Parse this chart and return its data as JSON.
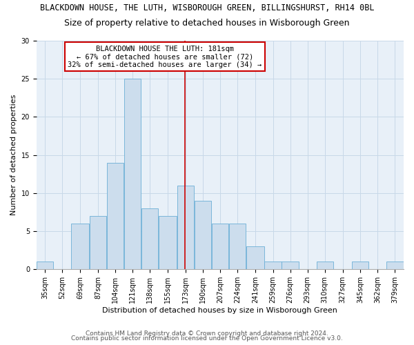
{
  "title": "BLACKDOWN HOUSE, THE LUTH, WISBOROUGH GREEN, BILLINGSHURST, RH14 0BL",
  "subtitle": "Size of property relative to detached houses in Wisborough Green",
  "xlabel": "Distribution of detached houses by size in Wisborough Green",
  "ylabel": "Number of detached properties",
  "footer1": "Contains HM Land Registry data © Crown copyright and database right 2024.",
  "footer2": "Contains public sector information licensed under the Open Government Licence v3.0.",
  "bar_labels": [
    "35sqm",
    "52sqm",
    "69sqm",
    "87sqm",
    "104sqm",
    "121sqm",
    "138sqm",
    "155sqm",
    "173sqm",
    "190sqm",
    "207sqm",
    "224sqm",
    "241sqm",
    "259sqm",
    "276sqm",
    "293sqm",
    "310sqm",
    "327sqm",
    "345sqm",
    "362sqm",
    "379sqm"
  ],
  "bar_values": [
    1,
    0,
    6,
    7,
    14,
    25,
    8,
    7,
    11,
    9,
    6,
    6,
    3,
    1,
    1,
    0,
    1,
    0,
    1,
    0,
    1
  ],
  "bar_color": "#ccdded",
  "bar_edge_color": "#6aaed6",
  "vline_color": "#cc0000",
  "annotation_title": "BLACKDOWN HOUSE THE LUTH: 181sqm",
  "annotation_line1": "← 67% of detached houses are smaller (72)",
  "annotation_line2": "32% of semi-detached houses are larger (34) →",
  "annotation_box_color": "#cc0000",
  "ylim": [
    0,
    30
  ],
  "yticks": [
    0,
    5,
    10,
    15,
    20,
    25,
    30
  ],
  "grid_color": "#c8d8e8",
  "bg_color": "#e8f0f8",
  "title_fontsize": 8.5,
  "subtitle_fontsize": 9,
  "axis_label_fontsize": 8,
  "tick_fontsize": 7,
  "annotation_fontsize": 7.5,
  "footer_fontsize": 6.5,
  "bin_edges": [
    35,
    52,
    69,
    87,
    104,
    121,
    138,
    155,
    173,
    190,
    207,
    224,
    241,
    259,
    276,
    293,
    310,
    327,
    345,
    362,
    379,
    396
  ]
}
